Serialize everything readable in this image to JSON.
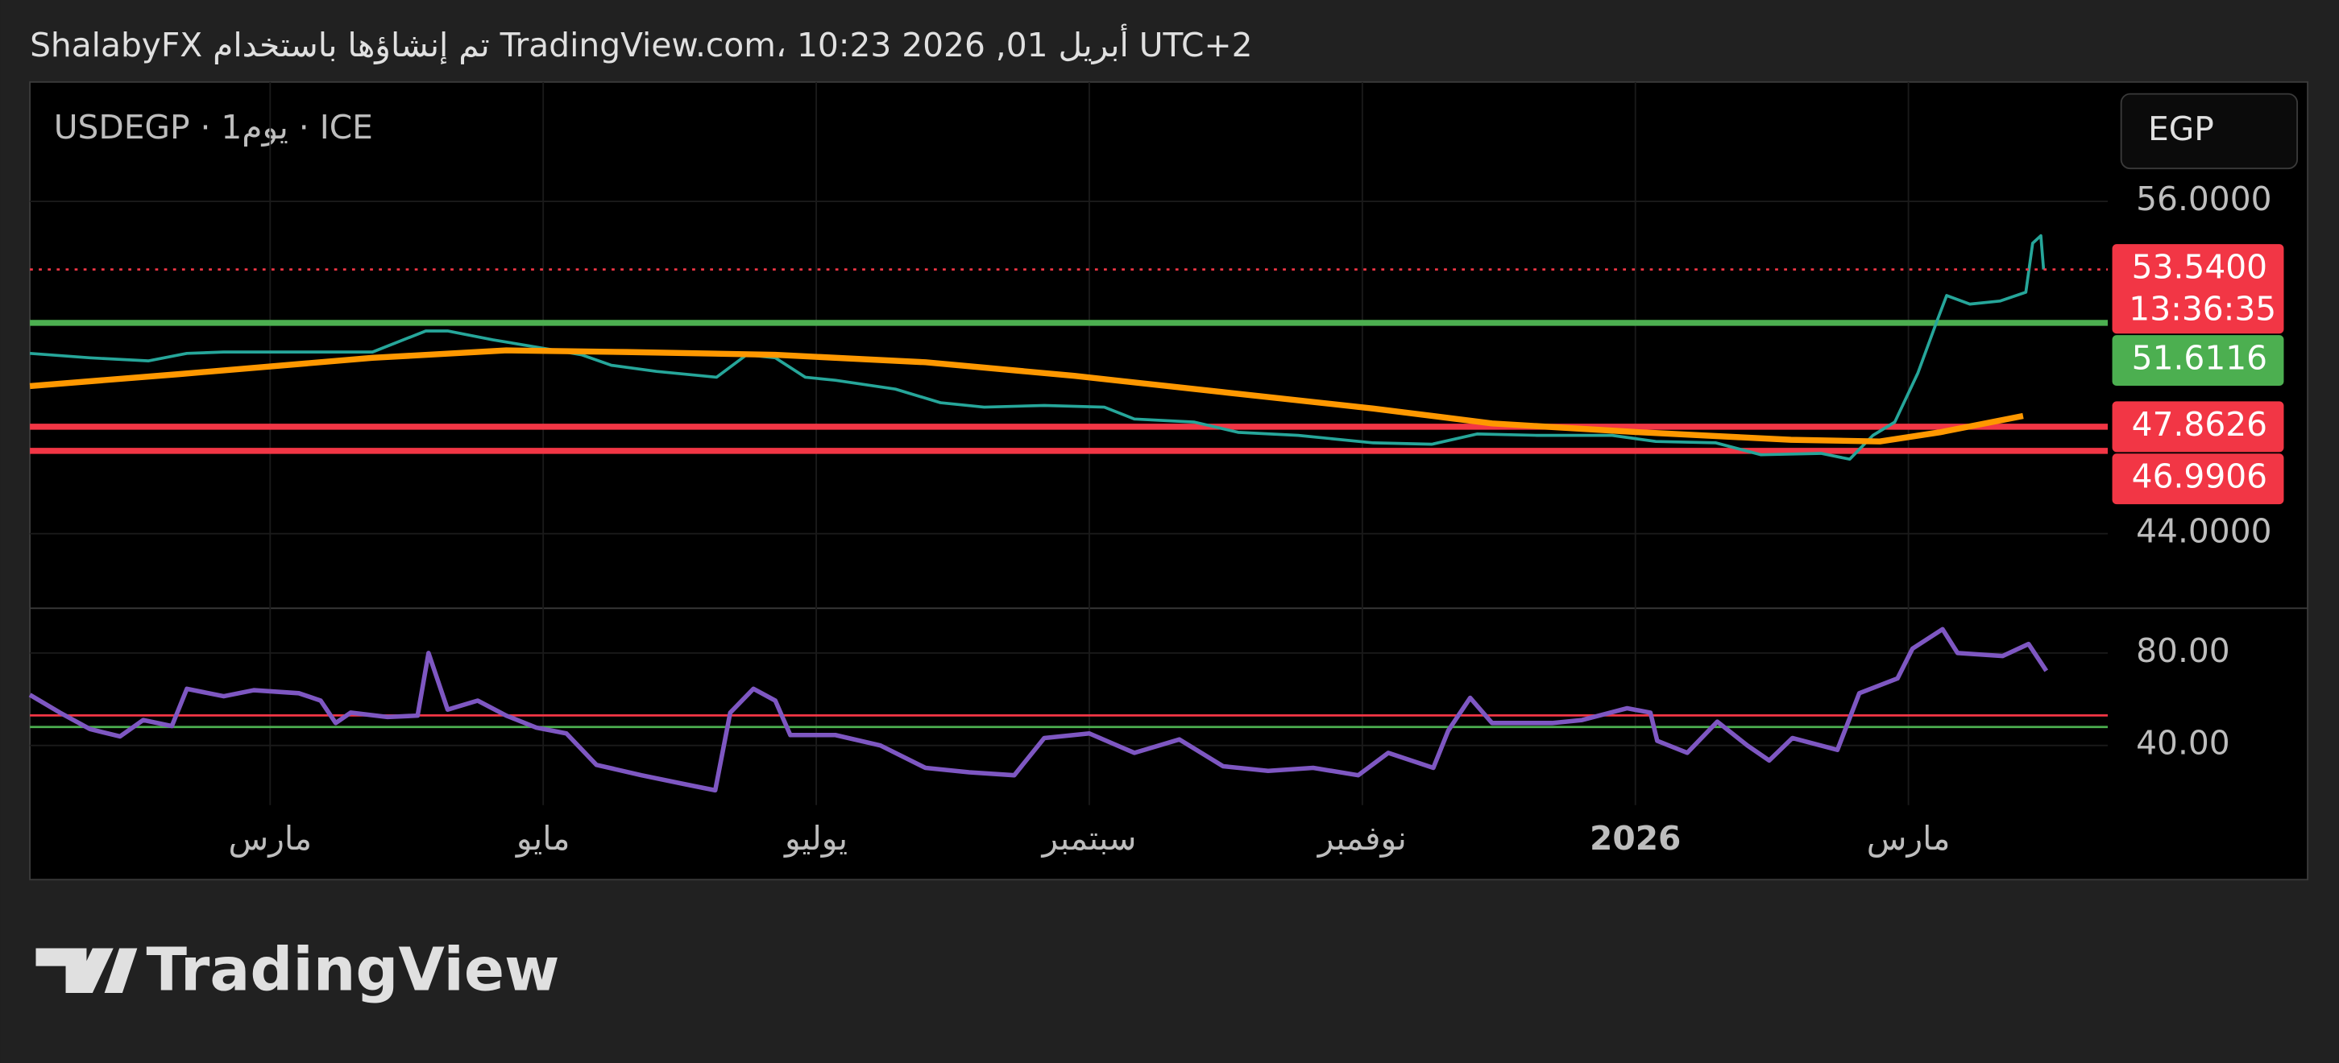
{
  "header": "ShalabyFX تم إنشاؤها باستخدام TradingView.com، 10:23 2026 ,01 أبريل UTC+2",
  "brand": "TradingView",
  "currency_button": "EGP",
  "chart_data": [
    {
      "type": "line",
      "title": "USDEGP · 1يوم · ICE",
      "xlim": [
        0.24,
        15.46
      ],
      "xticks": [
        {
          "value": 2,
          "label": "مارس"
        },
        {
          "value": 4,
          "label": "مايو"
        },
        {
          "value": 6,
          "label": "يوليو"
        },
        {
          "value": 8,
          "label": "سبتمبر"
        },
        {
          "value": 10,
          "label": "نوفمبر"
        },
        {
          "value": 12,
          "label": "2026"
        },
        {
          "value": 14,
          "label": "مارس"
        }
      ],
      "ylim": [
        41.36,
        60.31
      ],
      "yticks": [
        {
          "value": 44,
          "label": "44.0000"
        },
        {
          "value": 56,
          "label": "56.0000"
        }
      ],
      "grid": true,
      "series": [
        {
          "color": "#26a69a",
          "x": [
            0.24,
            0.68,
            1.11,
            1.39,
            1.66,
            2.21,
            2.75,
            3.14,
            3.3,
            3.63,
            3.96,
            4.28,
            4.5,
            4.83,
            5.27,
            5.49,
            5.7,
            5.92,
            6.14,
            6.58,
            6.91,
            7.23,
            7.67,
            8.11,
            8.33,
            8.77,
            9.09,
            9.53,
            10.08,
            10.51,
            10.84,
            11.28,
            11.83,
            12.15,
            12.59,
            12.92,
            13.36,
            13.57,
            13.74,
            13.9,
            14.07,
            14.21,
            14.28,
            14.45,
            14.67,
            14.86,
            14.91,
            14.97,
            14.99
          ],
          "values": [
            50.51,
            50.35,
            50.24,
            50.51,
            50.56,
            50.56,
            50.56,
            51.32,
            51.32,
            51.0,
            50.73,
            50.46,
            50.08,
            49.86,
            49.65,
            50.46,
            50.35,
            49.65,
            49.54,
            49.22,
            48.73,
            48.57,
            48.63,
            48.57,
            48.14,
            48.03,
            47.66,
            47.55,
            47.28,
            47.23,
            47.6,
            47.55,
            47.55,
            47.33,
            47.28,
            46.85,
            46.9,
            46.69,
            47.55,
            48.03,
            49.81,
            51.69,
            52.6,
            52.29,
            52.4,
            52.72,
            54.49,
            54.76,
            53.54
          ]
        },
        {
          "color": "#ff9800",
          "x": [
            0.24,
            1.33,
            2.75,
            3.73,
            4.61,
            5.7,
            6.8,
            7.89,
            8.98,
            10.08,
            10.95,
            12.04,
            13.14,
            13.79,
            14.23,
            14.84
          ],
          "values": [
            49.33,
            49.76,
            50.35,
            50.62,
            50.56,
            50.46,
            50.19,
            49.7,
            49.11,
            48.52,
            47.98,
            47.66,
            47.39,
            47.33,
            47.66,
            48.25
          ]
        }
      ],
      "last_price": {
        "value": 53.54,
        "label": "53.5400",
        "color": "#f23645"
      },
      "countdown": "13:36:35",
      "levels": [
        {
          "value": 51.6116,
          "color": "#4caf50"
        },
        {
          "value": 47.8626,
          "color": "#f23645"
        },
        {
          "value": 46.9906,
          "color": "#f23645"
        }
      ]
    },
    {
      "type": "line",
      "ylim": [
        14.2,
        99.35
      ],
      "yticks": [
        {
          "value": 80,
          "label": "80.00"
        },
        {
          "value": 40,
          "label": "40.00"
        }
      ],
      "color": "#7e57c2",
      "x": [
        0.24,
        0.46,
        0.68,
        0.9,
        1.07,
        1.28,
        1.39,
        1.66,
        1.88,
        2.21,
        2.37,
        2.48,
        2.59,
        2.86,
        3.08,
        3.16,
        3.3,
        3.52,
        3.73,
        3.95,
        4.17,
        4.39,
        4.72,
        5.04,
        5.26,
        5.37,
        5.54,
        5.7,
        5.81,
        6.14,
        6.47,
        6.8,
        7.12,
        7.45,
        7.67,
        8.0,
        8.33,
        8.66,
        8.98,
        9.31,
        9.64,
        9.97,
        10.19,
        10.52,
        10.63,
        10.79,
        10.95,
        11.39,
        11.61,
        11.94,
        12.11,
        12.16,
        12.38,
        12.6,
        12.82,
        12.98,
        13.15,
        13.48,
        13.64,
        13.92,
        14.03,
        14.25,
        14.36,
        14.69,
        14.88,
        15.01
      ],
      "values": [
        61.9,
        54.2,
        47.1,
        43.9,
        51.0,
        48.4,
        64.5,
        61.3,
        63.9,
        62.6,
        59.4,
        49.7,
        54.2,
        52.3,
        52.9,
        80,
        55.5,
        59.4,
        52.9,
        47.7,
        45.2,
        31.6,
        27.1,
        23.2,
        20.6,
        54.2,
        64.5,
        59.4,
        44.5,
        44.5,
        40,
        30.3,
        28.4,
        27.1,
        43.2,
        45.2,
        36.8,
        42.6,
        31,
        29,
        30.3,
        27.1,
        36.8,
        30.3,
        46.5,
        60.6,
        49.7,
        49.7,
        51,
        56.1,
        54.2,
        42,
        36.8,
        50.3,
        40,
        33.5,
        43.2,
        38.1,
        62.6,
        69,
        81.9,
        90.3,
        80,
        78.7,
        83.9,
        72.3
      ],
      "levels": [
        {
          "value": 53,
          "color": "#f23645"
        },
        {
          "value": 48,
          "color": "#4caf50"
        }
      ]
    }
  ]
}
